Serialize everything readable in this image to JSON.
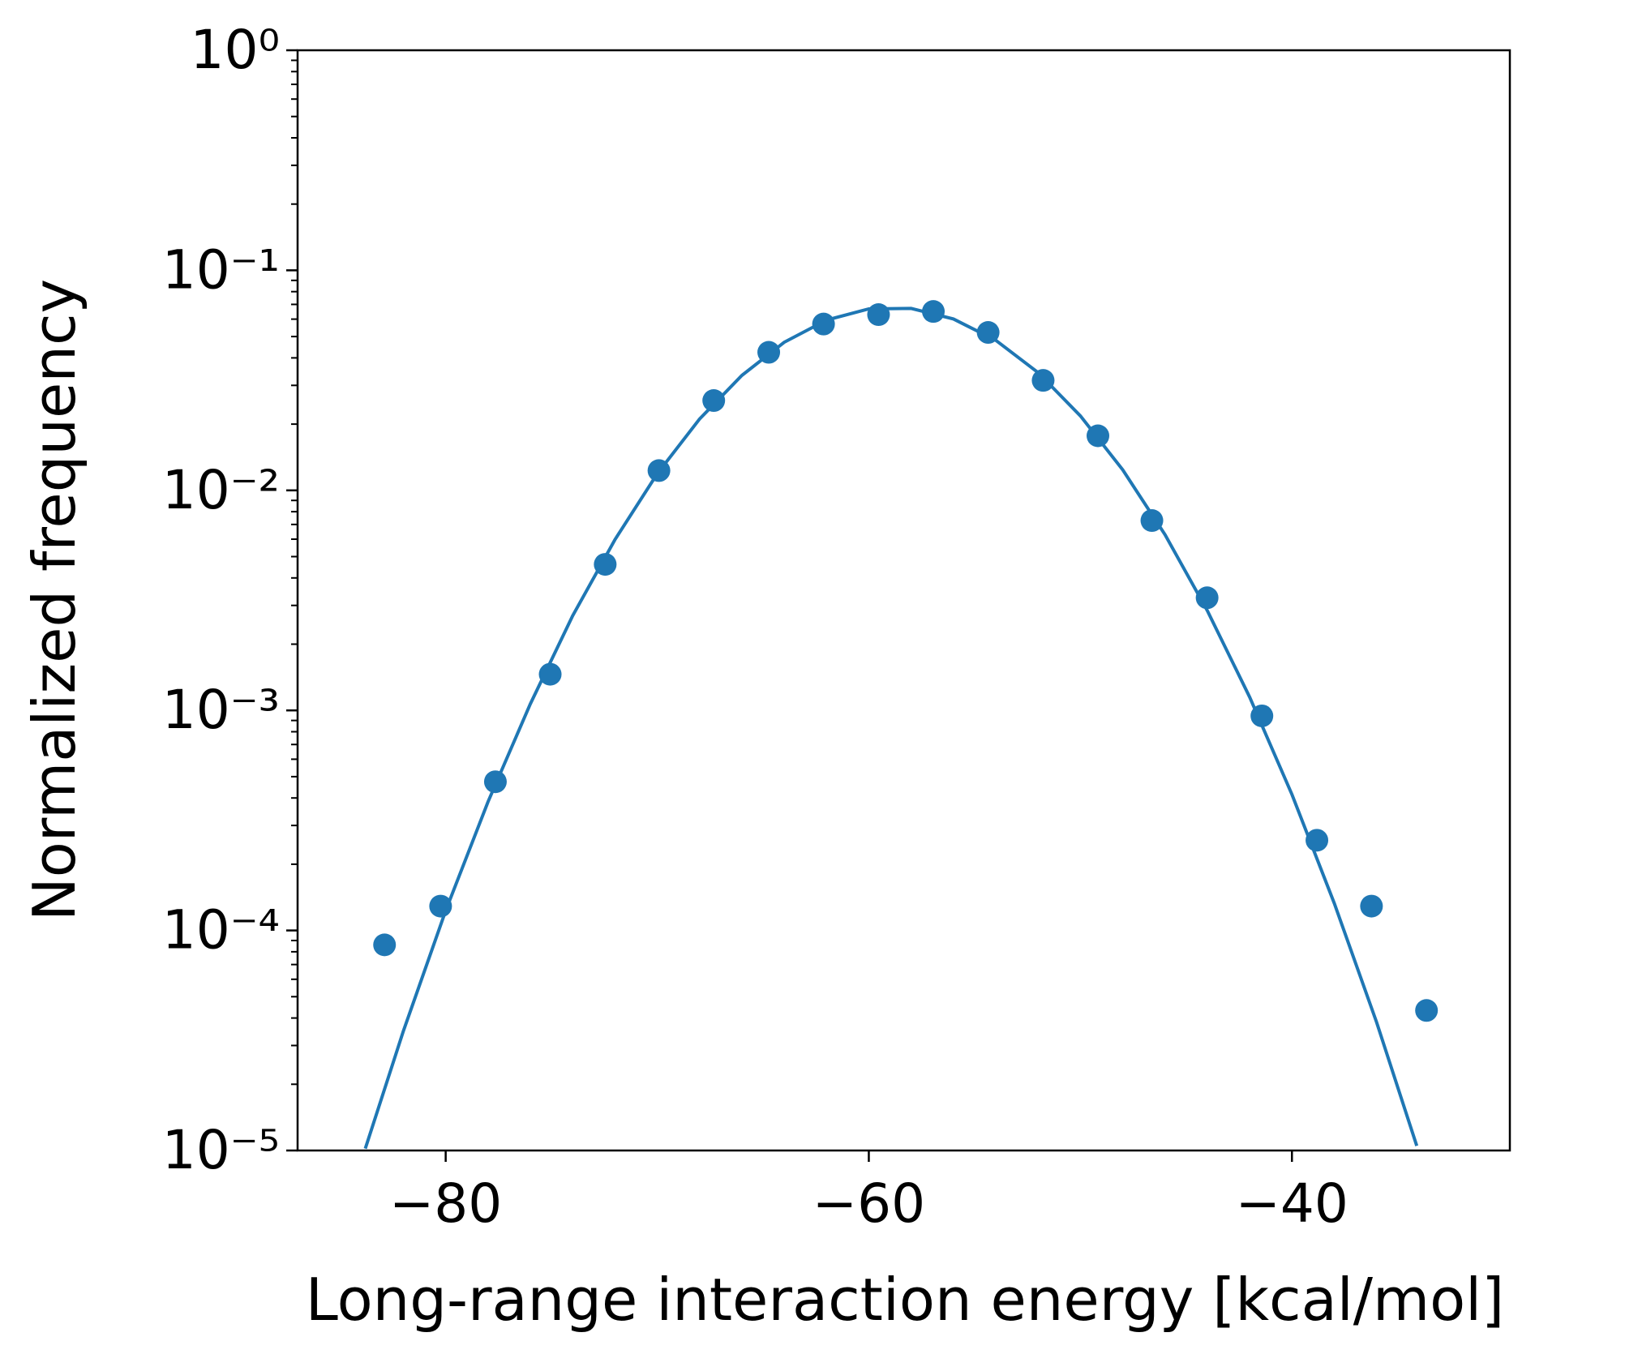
{
  "chart_data": {
    "type": "scatter",
    "xlabel": "Long-range interaction energy [kcal/mol]",
    "ylabel": "Normalized frequency",
    "log_y": true,
    "xlim": [
      -87.0,
      -29.7
    ],
    "ylim": [
      1e-05,
      1
    ],
    "xticks": [
      {
        "value": -80,
        "label": "−80"
      },
      {
        "value": -60,
        "label": "−60"
      },
      {
        "value": -40,
        "label": "−40"
      }
    ],
    "yticks": [
      {
        "value": 1e-05,
        "label": "10⁻⁵"
      },
      {
        "value": 0.0001,
        "label": "10⁻⁴"
      },
      {
        "value": 0.001,
        "label": "10⁻³"
      },
      {
        "value": 0.01,
        "label": "10⁻²"
      },
      {
        "value": 0.1,
        "label": "10⁻¹"
      },
      {
        "value": 1,
        "label": "10⁰"
      }
    ],
    "yminorticks": [
      2e-05,
      3e-05,
      4e-05,
      5e-05,
      6e-05,
      7e-05,
      8e-05,
      9e-05,
      0.0002,
      0.0003,
      0.0004,
      0.0005,
      0.0006,
      0.0007,
      0.0008,
      0.0009,
      0.002,
      0.003,
      0.004,
      0.005,
      0.006,
      0.007,
      0.008,
      0.009,
      0.02,
      0.03,
      0.04,
      0.05,
      0.06,
      0.07,
      0.08,
      0.09,
      0.2,
      0.3,
      0.4,
      0.5,
      0.6,
      0.7,
      0.8,
      0.9
    ],
    "series": [
      {
        "type": "scatter",
        "color": "#1f77b4",
        "x": [
          -82.89,
          -80.24,
          -77.65,
          -75.06,
          -72.46,
          -69.92,
          -67.33,
          -64.73,
          -62.14,
          -59.54,
          -56.95,
          -54.36,
          -51.76,
          -49.17,
          -46.62,
          -44.01,
          -41.42,
          -38.82,
          -36.24,
          -33.64
        ],
        "values": [
          8.6e-05,
          0.000129,
          0.000474,
          0.00146,
          0.00461,
          0.0123,
          0.0256,
          0.0424,
          0.057,
          0.0629,
          0.065,
          0.0522,
          0.0316,
          0.0177,
          0.00729,
          0.00325,
          0.000944,
          0.000257,
          0.000129,
          4.33e-05
        ]
      },
      {
        "type": "line",
        "color": "#1f77b4",
        "x": [
          -83.8,
          -82,
          -80,
          -78,
          -76,
          -74,
          -72,
          -70,
          -68,
          -66,
          -64,
          -62,
          -60,
          -58,
          -56,
          -54,
          -52,
          -50,
          -48,
          -46,
          -44,
          -42,
          -40,
          -38,
          -36,
          -34.1
        ],
        "values": [
          1.02e-05,
          3.49e-05,
          0.000123,
          0.000384,
          0.00107,
          0.00269,
          0.00597,
          0.0119,
          0.0211,
          0.0333,
          0.0471,
          0.0594,
          0.0668,
          0.0671,
          0.0601,
          0.0481,
          0.0343,
          0.0218,
          0.0124,
          0.00629,
          0.00284,
          0.00115,
          0.000415,
          0.000133,
          3.83e-05,
          1.05e-05
        ]
      }
    ]
  }
}
